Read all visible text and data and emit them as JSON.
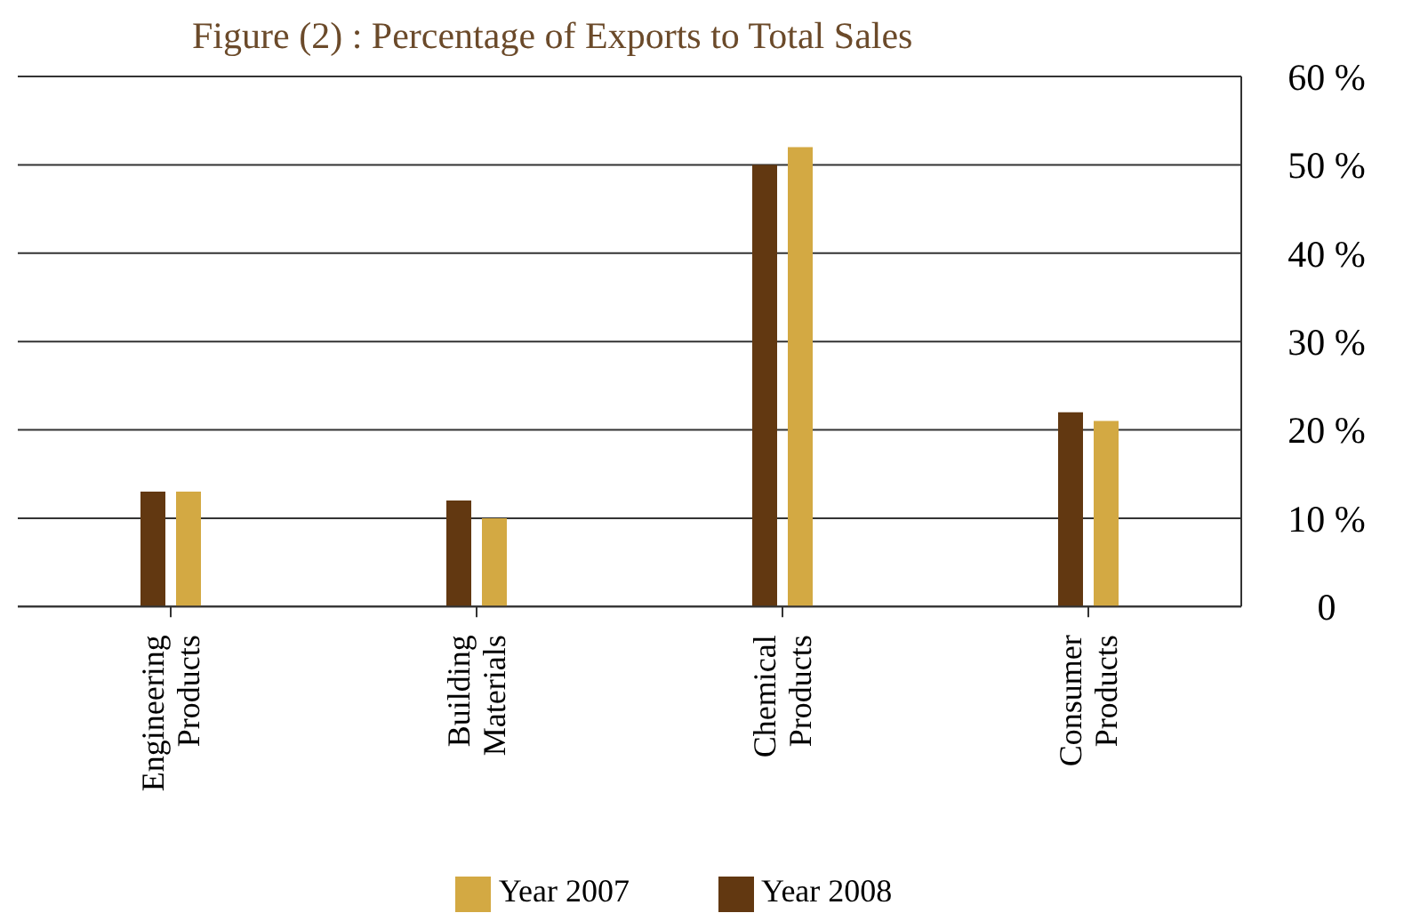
{
  "chart_data": {
    "type": "bar",
    "title": "Figure (2) : Percentage of Exports to Total Sales",
    "categories": [
      "Engineering Products",
      "Building Materials",
      "Chemical Products",
      "Consumer Products"
    ],
    "series": [
      {
        "name": "Year 2008",
        "color": "#623811",
        "values": [
          13,
          12,
          50,
          22
        ]
      },
      {
        "name": "Year 2007",
        "color": "#d3a943",
        "values": [
          13,
          10,
          52,
          21
        ]
      }
    ],
    "ylim": [
      0,
      60
    ],
    "yticks": [
      0,
      {
        "value": 10,
        "label": "10 %"
      },
      {
        "value": 20,
        "label": "20 %"
      },
      {
        "value": 30,
        "label": "30 %"
      },
      {
        "value": 40,
        "label": "40 %"
      },
      {
        "value": 50,
        "label": "50 %"
      },
      {
        "value": 60,
        "label": "60 %"
      }
    ],
    "grid": "y",
    "legend": "bottom"
  }
}
